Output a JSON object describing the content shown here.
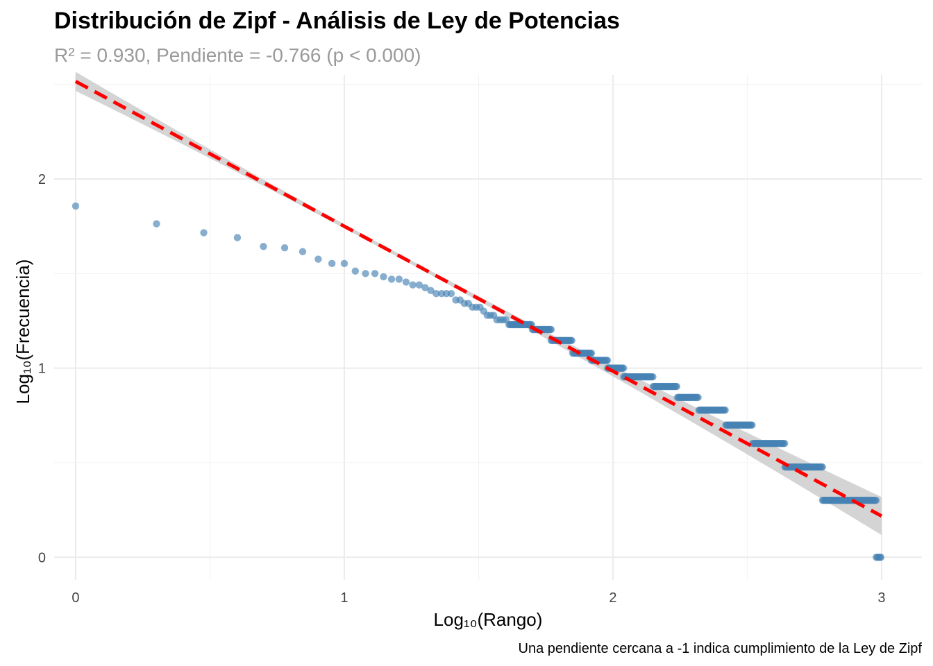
{
  "chart_data": {
    "type": "scatter",
    "title": "Distribución de Zipf - Análisis de Ley de Potencias",
    "subtitle": "R² = 0.930, Pendiente = -0.766 (p < 0.000)",
    "xlabel": "Log₁₀(Rango)",
    "ylabel": "Log₁₀(Frecuencia)",
    "caption": "Una pendiente cercana a -1 indica cumplimiento de la Ley de Zipf",
    "xlim": [
      -0.08,
      3.15
    ],
    "ylim": [
      -0.12,
      2.55
    ],
    "x_ticks": [
      "0",
      "1",
      "2",
      "3"
    ],
    "y_ticks": [
      "0",
      "1",
      "2"
    ],
    "grid": true,
    "colors": {
      "points": "#4682B4",
      "fit_line": "#FF0000",
      "confidence_band": "#CCCCCC"
    },
    "fit_line": {
      "intercept": 2.516,
      "slope": -0.766,
      "x_range": [
        0,
        3
      ]
    },
    "series": [
      {
        "points": [
          [
            0.0,
            1.857
          ],
          [
            0.301,
            1.763
          ],
          [
            0.477,
            1.716
          ],
          [
            0.602,
            1.69
          ],
          [
            0.699,
            1.643
          ],
          [
            0.778,
            1.636
          ],
          [
            0.845,
            1.616
          ],
          [
            0.903,
            1.576
          ],
          [
            0.954,
            1.553
          ],
          [
            1.0,
            1.553
          ],
          [
            1.041,
            1.513
          ],
          [
            1.079,
            1.5
          ],
          [
            1.114,
            1.5
          ],
          [
            1.146,
            1.483
          ],
          [
            1.176,
            1.47
          ],
          [
            1.204,
            1.47
          ],
          [
            1.23,
            1.455
          ],
          [
            1.255,
            1.44
          ],
          [
            1.279,
            1.44
          ],
          [
            1.301,
            1.425
          ],
          [
            1.322,
            1.41
          ],
          [
            1.342,
            1.394
          ],
          [
            1.362,
            1.394
          ],
          [
            1.38,
            1.394
          ],
          [
            1.398,
            1.394
          ],
          [
            1.415,
            1.36
          ],
          [
            1.431,
            1.36
          ],
          [
            1.447,
            1.342
          ],
          [
            1.462,
            1.342
          ],
          [
            1.477,
            1.322
          ],
          [
            1.491,
            1.322
          ],
          [
            1.505,
            1.322
          ],
          [
            1.519,
            1.301
          ],
          [
            1.532,
            1.279
          ],
          [
            1.544,
            1.279
          ],
          [
            1.556,
            1.279
          ],
          [
            1.568,
            1.255
          ],
          [
            1.58,
            1.255
          ],
          [
            1.591,
            1.255
          ],
          [
            1.602,
            1.255
          ]
        ],
        "clusters": [
          {
            "y": 1.23,
            "x_from": 1.613,
            "x_to": 1.7
          },
          {
            "y": 1.204,
            "x_from": 1.7,
            "x_to": 1.77
          },
          {
            "y": 1.146,
            "x_from": 1.77,
            "x_to": 1.85
          },
          {
            "y": 1.079,
            "x_from": 1.85,
            "x_to": 1.92
          },
          {
            "y": 1.041,
            "x_from": 1.92,
            "x_to": 1.98
          },
          {
            "y": 1.0,
            "x_from": 1.98,
            "x_to": 2.04
          },
          {
            "y": 0.954,
            "x_from": 2.04,
            "x_to": 2.15
          },
          {
            "y": 0.903,
            "x_from": 2.15,
            "x_to": 2.24
          },
          {
            "y": 0.845,
            "x_from": 2.24,
            "x_to": 2.32
          },
          {
            "y": 0.778,
            "x_from": 2.32,
            "x_to": 2.42
          },
          {
            "y": 0.699,
            "x_from": 2.42,
            "x_to": 2.52
          },
          {
            "y": 0.602,
            "x_from": 2.52,
            "x_to": 2.64
          },
          {
            "y": 0.477,
            "x_from": 2.64,
            "x_to": 2.78
          },
          {
            "y": 0.301,
            "x_from": 2.78,
            "x_to": 2.98
          },
          {
            "y": 0.0,
            "x_from": 2.98,
            "x_to": 3.0
          }
        ]
      }
    ]
  }
}
